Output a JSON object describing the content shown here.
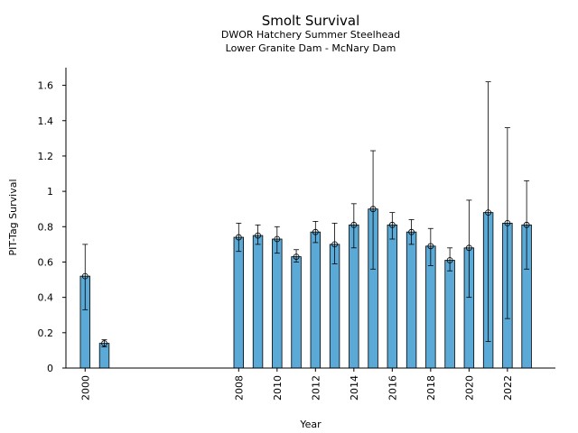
{
  "chart_data": {
    "type": "bar",
    "title": "Smolt Survival",
    "subtitle": [
      "DWOR Hatchery Summer Steelhead",
      "Lower Granite Dam - McNary Dam"
    ],
    "xlabel": "Year",
    "ylabel": "PIT-Tag Survival",
    "xlim": [
      1999,
      2024.5
    ],
    "ylim": [
      0,
      1.7
    ],
    "xticks": [
      2000,
      2008,
      2010,
      2012,
      2014,
      2016,
      2018,
      2020,
      2022
    ],
    "yticks": [
      0,
      0.2,
      0.4,
      0.6,
      0.8,
      1,
      1.2,
      1.4,
      1.6
    ],
    "ytick_labels": [
      "0",
      "0.2",
      "0.4",
      "0.6",
      "0.8",
      "1",
      "1.2",
      "1.4",
      "1.6"
    ],
    "bar_color": "#5aa9d6",
    "grid": false,
    "points": [
      {
        "x": 2000,
        "y": 0.52,
        "lo": 0.33,
        "hi": 0.7
      },
      {
        "x": 2001,
        "y": 0.14,
        "lo": 0.12,
        "hi": 0.16
      },
      {
        "x": 2008,
        "y": 0.74,
        "lo": 0.66,
        "hi": 0.82
      },
      {
        "x": 2009,
        "y": 0.75,
        "lo": 0.7,
        "hi": 0.81
      },
      {
        "x": 2010,
        "y": 0.73,
        "lo": 0.65,
        "hi": 0.8
      },
      {
        "x": 2011,
        "y": 0.63,
        "lo": 0.6,
        "hi": 0.67
      },
      {
        "x": 2012,
        "y": 0.77,
        "lo": 0.71,
        "hi": 0.83
      },
      {
        "x": 2013,
        "y": 0.7,
        "lo": 0.59,
        "hi": 0.82
      },
      {
        "x": 2014,
        "y": 0.81,
        "lo": 0.68,
        "hi": 0.93
      },
      {
        "x": 2015,
        "y": 0.9,
        "lo": 0.56,
        "hi": 1.23
      },
      {
        "x": 2016,
        "y": 0.81,
        "lo": 0.73,
        "hi": 0.88
      },
      {
        "x": 2017,
        "y": 0.77,
        "lo": 0.7,
        "hi": 0.84
      },
      {
        "x": 2018,
        "y": 0.69,
        "lo": 0.58,
        "hi": 0.79
      },
      {
        "x": 2019,
        "y": 0.61,
        "lo": 0.55,
        "hi": 0.68
      },
      {
        "x": 2020,
        "y": 0.68,
        "lo": 0.4,
        "hi": 0.95
      },
      {
        "x": 2021,
        "y": 0.88,
        "lo": 0.15,
        "hi": 1.62
      },
      {
        "x": 2022,
        "y": 0.82,
        "lo": 0.28,
        "hi": 1.36
      },
      {
        "x": 2023,
        "y": 0.81,
        "lo": 0.56,
        "hi": 1.06
      }
    ]
  }
}
